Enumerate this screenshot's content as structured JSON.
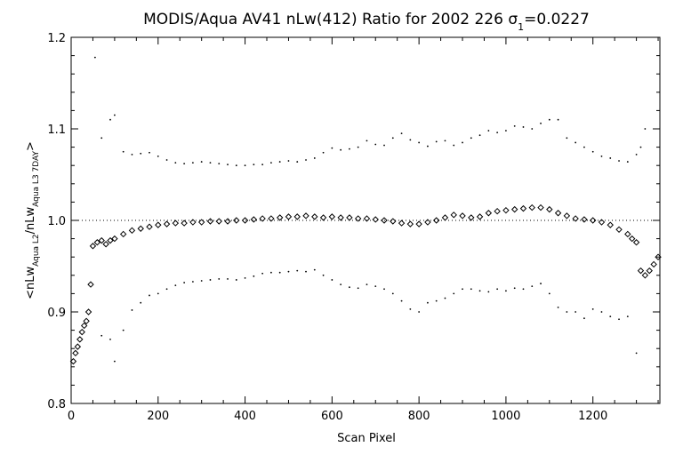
{
  "chart_data": {
    "type": "scatter",
    "title_parts": {
      "main": "MODIS/Aqua AV41 nLw(412) Ratio for 2002 226 ",
      "sigma": "σ",
      "sigma_sub": "1",
      "value": "=0.0227"
    },
    "xlabel": "Scan Pixel",
    "ylabel_parts": {
      "open": "<nLw",
      "sub1": "Aqua L2",
      "mid": "/nLw",
      "sub2": "Aqua L3 7DAY",
      "close": ">"
    },
    "xlim": [
      0,
      1354
    ],
    "ylim": [
      0.8,
      1.2
    ],
    "xticks": [
      0,
      200,
      400,
      600,
      800,
      1000,
      1200
    ],
    "yticks": [
      0.8,
      0.9,
      1.0,
      1.1,
      1.2
    ],
    "reference_line": 1.0,
    "grid": false,
    "series": [
      {
        "role": "mean",
        "marker": "diamond",
        "x": [
          5,
          10,
          15,
          20,
          25,
          30,
          35,
          40,
          45,
          50,
          60,
          70,
          80,
          90,
          100,
          120,
          140,
          160,
          180,
          200,
          220,
          240,
          260,
          280,
          300,
          320,
          340,
          360,
          380,
          400,
          420,
          440,
          460,
          480,
          500,
          520,
          540,
          560,
          580,
          600,
          620,
          640,
          660,
          680,
          700,
          720,
          740,
          760,
          780,
          800,
          820,
          840,
          860,
          880,
          900,
          920,
          940,
          960,
          980,
          1000,
          1020,
          1040,
          1060,
          1080,
          1100,
          1120,
          1140,
          1160,
          1180,
          1200,
          1220,
          1240,
          1260,
          1280,
          1290,
          1300,
          1310,
          1320,
          1330,
          1340,
          1350
        ],
        "y": [
          0.846,
          0.855,
          0.862,
          0.87,
          0.878,
          0.885,
          0.89,
          0.9,
          0.93,
          0.972,
          0.976,
          0.978,
          0.974,
          0.978,
          0.98,
          0.985,
          0.989,
          0.991,
          0.993,
          0.995,
          0.996,
          0.997,
          0.997,
          0.998,
          0.998,
          0.999,
          0.999,
          0.999,
          1.0,
          1.0,
          1.001,
          1.002,
          1.002,
          1.003,
          1.004,
          1.004,
          1.005,
          1.004,
          1.003,
          1.004,
          1.003,
          1.003,
          1.002,
          1.002,
          1.001,
          1.0,
          0.999,
          0.997,
          0.996,
          0.996,
          0.998,
          1.0,
          1.003,
          1.006,
          1.005,
          1.003,
          1.004,
          1.008,
          1.01,
          1.011,
          1.012,
          1.013,
          1.014,
          1.014,
          1.012,
          1.008,
          1.005,
          1.002,
          1.001,
          1.0,
          0.998,
          0.995,
          0.99,
          0.985,
          0.98,
          0.976,
          0.945,
          0.94,
          0.945,
          0.952,
          0.96
        ]
      },
      {
        "role": "mean_plus_sigma",
        "marker": "dot",
        "x": [
          55,
          70,
          90,
          100,
          120,
          140,
          160,
          180,
          200,
          220,
          240,
          260,
          280,
          300,
          320,
          340,
          360,
          380,
          400,
          420,
          440,
          460,
          480,
          500,
          520,
          540,
          560,
          580,
          600,
          620,
          640,
          660,
          680,
          700,
          720,
          740,
          760,
          780,
          800,
          820,
          840,
          860,
          880,
          900,
          920,
          940,
          960,
          980,
          1000,
          1020,
          1040,
          1060,
          1080,
          1100,
          1120,
          1140,
          1160,
          1180,
          1200,
          1220,
          1240,
          1260,
          1280,
          1300,
          1310,
          1320
        ],
        "y": [
          1.178,
          1.09,
          1.11,
          1.115,
          1.075,
          1.072,
          1.073,
          1.074,
          1.07,
          1.066,
          1.063,
          1.062,
          1.063,
          1.064,
          1.063,
          1.062,
          1.061,
          1.06,
          1.06,
          1.061,
          1.061,
          1.063,
          1.064,
          1.065,
          1.064,
          1.066,
          1.068,
          1.074,
          1.079,
          1.077,
          1.078,
          1.08,
          1.087,
          1.083,
          1.082,
          1.09,
          1.095,
          1.088,
          1.085,
          1.081,
          1.086,
          1.087,
          1.082,
          1.085,
          1.09,
          1.093,
          1.098,
          1.096,
          1.098,
          1.103,
          1.102,
          1.1,
          1.106,
          1.11,
          1.11,
          1.09,
          1.085,
          1.08,
          1.075,
          1.07,
          1.068,
          1.065,
          1.064,
          1.072,
          1.08,
          1.1
        ]
      },
      {
        "role": "mean_minus_sigma",
        "marker": "dot",
        "x": [
          70,
          90,
          100,
          120,
          140,
          160,
          180,
          200,
          220,
          240,
          260,
          280,
          300,
          320,
          340,
          360,
          380,
          400,
          420,
          440,
          460,
          480,
          500,
          520,
          540,
          560,
          580,
          600,
          620,
          640,
          660,
          680,
          700,
          720,
          740,
          760,
          780,
          800,
          820,
          840,
          860,
          880,
          900,
          920,
          940,
          960,
          980,
          1000,
          1020,
          1040,
          1060,
          1080,
          1100,
          1120,
          1140,
          1160,
          1180,
          1200,
          1220,
          1240,
          1260,
          1280,
          1300
        ],
        "y": [
          0.874,
          0.87,
          0.846,
          0.88,
          0.902,
          0.91,
          0.918,
          0.92,
          0.925,
          0.929,
          0.932,
          0.933,
          0.934,
          0.935,
          0.936,
          0.936,
          0.935,
          0.937,
          0.939,
          0.942,
          0.943,
          0.943,
          0.944,
          0.945,
          0.944,
          0.946,
          0.94,
          0.935,
          0.93,
          0.927,
          0.926,
          0.93,
          0.928,
          0.925,
          0.92,
          0.912,
          0.903,
          0.9,
          0.91,
          0.912,
          0.915,
          0.92,
          0.925,
          0.925,
          0.923,
          0.922,
          0.925,
          0.923,
          0.926,
          0.925,
          0.928,
          0.931,
          0.92,
          0.905,
          0.9,
          0.9,
          0.893,
          0.903,
          0.9,
          0.895,
          0.892,
          0.895,
          0.855
        ]
      }
    ]
  }
}
